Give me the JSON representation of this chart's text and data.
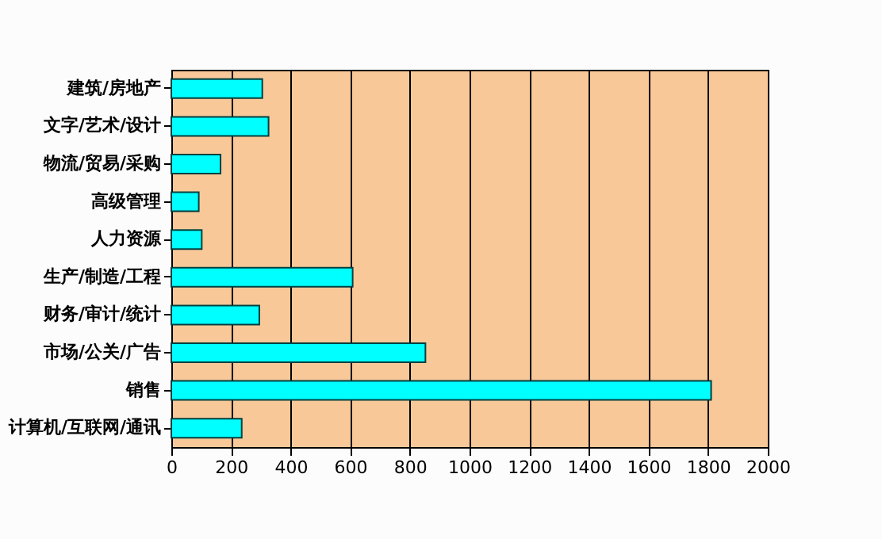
{
  "chart_data": {
    "type": "bar",
    "orientation": "horizontal",
    "categories": [
      "建筑/房地产",
      "文字/艺术/设计",
      "物流/贸易/采购",
      "高级管理",
      "人力资源",
      "生产/制造/工程",
      "财务/审计/统计",
      "市场/公关/广告",
      "销售",
      "计算机/互联网/通讯"
    ],
    "values": [
      305,
      326,
      165,
      92,
      102,
      608,
      295,
      852,
      1810,
      236
    ],
    "color": "#00ffff",
    "xlim": [
      0,
      2000
    ],
    "xticks": [
      0,
      200,
      400,
      600,
      800,
      1000,
      1200,
      1400,
      1600,
      1800,
      2000
    ],
    "grid": "x"
  }
}
